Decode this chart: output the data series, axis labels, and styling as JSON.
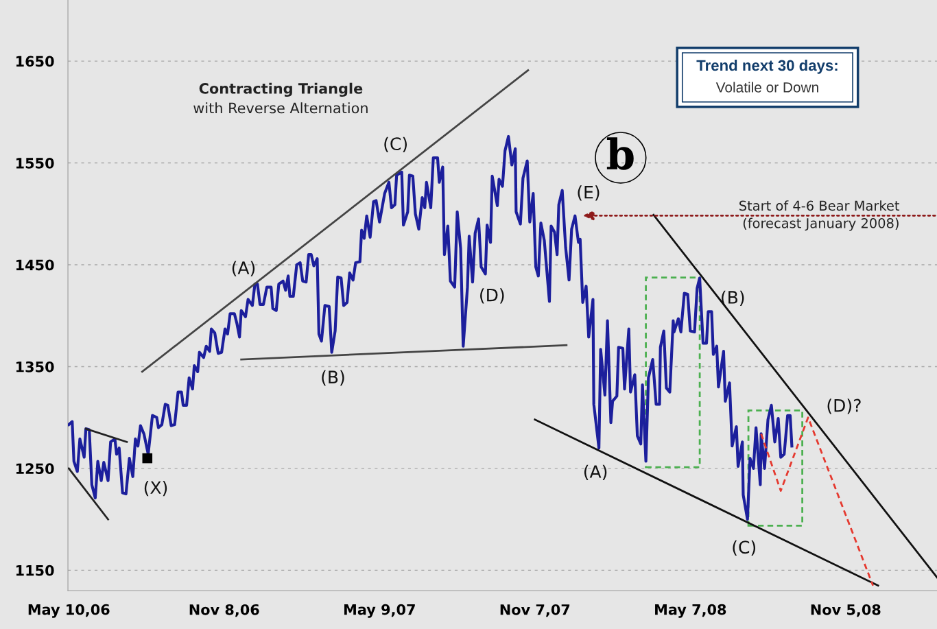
{
  "chart_data": {
    "type": "line",
    "title": "Contracting Triangle",
    "subtitle": "with Reverse Alternation",
    "xlim": [
      "2006-05-09",
      "2009-02-20"
    ],
    "ylim": [
      1130,
      1710
    ],
    "xticks": [
      {
        "value": "2006-05-10",
        "label": "May 10,06"
      },
      {
        "value": "2006-11-08",
        "label": "Nov 8,06"
      },
      {
        "value": "2007-05-09",
        "label": "May 9,07"
      },
      {
        "value": "2007-11-07",
        "label": "Nov 7,07"
      },
      {
        "value": "2008-05-07",
        "label": "May 7,08"
      },
      {
        "value": "2008-11-05",
        "label": "Nov 5,08"
      }
    ],
    "yticks": [
      1150,
      1250,
      1350,
      1450,
      1550,
      1650
    ],
    "grid": "y",
    "series": [
      {
        "type": "line",
        "color": "#1c1f9c",
        "line_style": "solid",
        "x": [
          "2006-05-10",
          "2006-05-14",
          "2006-05-16",
          "2006-05-20",
          "2006-05-23",
          "2006-05-28",
          "2006-05-30",
          "2006-06-03",
          "2006-06-06",
          "2006-06-10",
          "2006-06-13",
          "2006-06-17",
          "2006-06-20",
          "2006-06-25",
          "2006-06-28",
          "2006-07-03",
          "2006-07-05",
          "2006-07-08",
          "2006-07-12",
          "2006-07-16",
          "2006-07-20",
          "2006-07-24",
          "2006-07-27",
          "2006-07-30",
          "2006-08-02",
          "2006-08-06",
          "2006-08-11",
          "2006-08-16",
          "2006-08-21",
          "2006-08-23",
          "2006-08-27",
          "2006-08-31",
          "2006-09-03",
          "2006-09-07",
          "2006-09-11",
          "2006-09-15",
          "2006-09-19",
          "2006-09-21",
          "2006-09-25",
          "2006-09-28",
          "2006-10-02",
          "2006-10-04",
          "2006-10-08",
          "2006-10-10",
          "2006-10-15",
          "2006-10-18",
          "2006-10-22",
          "2006-10-24",
          "2006-10-28",
          "2006-11-01",
          "2006-11-05",
          "2006-11-09",
          "2006-11-12",
          "2006-11-15",
          "2006-11-20",
          "2006-11-23",
          "2006-11-26",
          "2006-11-28",
          "2006-12-03",
          "2006-12-06",
          "2006-12-11",
          "2006-12-14",
          "2006-12-17",
          "2006-12-20",
          "2006-12-24",
          "2006-12-28",
          "2007-01-02",
          "2007-01-04",
          "2007-01-08",
          "2007-01-11",
          "2007-01-16",
          "2007-01-19",
          "2007-01-22",
          "2007-01-24",
          "2007-01-28",
          "2007-02-01",
          "2007-02-05",
          "2007-02-08",
          "2007-02-12",
          "2007-02-15",
          "2007-02-18",
          "2007-02-21",
          "2007-02-25",
          "2007-02-27",
          "2007-03-02",
          "2007-03-06",
          "2007-03-11",
          "2007-03-14",
          "2007-03-18",
          "2007-03-21",
          "2007-03-25",
          "2007-03-28",
          "2007-04-01",
          "2007-04-04",
          "2007-04-08",
          "2007-04-11",
          "2007-04-16",
          "2007-04-18",
          "2007-04-21",
          "2007-04-24",
          "2007-04-28",
          "2007-05-02",
          "2007-05-05",
          "2007-05-09",
          "2007-05-15",
          "2007-05-20",
          "2007-05-23",
          "2007-05-27",
          "2007-05-29",
          "2007-06-04",
          "2007-06-06",
          "2007-06-11",
          "2007-06-13",
          "2007-06-17",
          "2007-06-20",
          "2007-06-24",
          "2007-06-28",
          "2007-07-01",
          "2007-07-03",
          "2007-07-08",
          "2007-07-11",
          "2007-07-16",
          "2007-07-18",
          "2007-07-22",
          "2007-07-24",
          "2007-07-28",
          "2007-07-31",
          "2007-08-05",
          "2007-08-08",
          "2007-08-12",
          "2007-08-15",
          "2007-08-20",
          "2007-08-22",
          "2007-08-26",
          "2007-08-29",
          "2007-09-02",
          "2007-09-05",
          "2007-09-10",
          "2007-09-12",
          "2007-09-16",
          "2007-09-18",
          "2007-09-24",
          "2007-09-26",
          "2007-09-30",
          "2007-10-03",
          "2007-10-07",
          "2007-10-11",
          "2007-10-15",
          "2007-10-16",
          "2007-10-21",
          "2007-10-24",
          "2007-10-29",
          "2007-11-01",
          "2007-11-05",
          "2007-11-08",
          "2007-11-11",
          "2007-11-14",
          "2007-11-18",
          "2007-11-20",
          "2007-11-24",
          "2007-11-26",
          "2007-11-30",
          "2007-12-03",
          "2007-12-05",
          "2007-12-09",
          "2007-12-13",
          "2007-12-17",
          "2007-12-20",
          "2007-12-24",
          "2007-12-28",
          "2007-12-30",
          "2008-01-02",
          "2008-01-06",
          "2008-01-09",
          "2008-01-14",
          "2008-01-15",
          "2008-01-21",
          "2008-01-23",
          "2008-01-28",
          "2008-01-31",
          "2008-02-04",
          "2008-02-06",
          "2008-02-11",
          "2008-02-13",
          "2008-02-18",
          "2008-02-20",
          "2008-02-25",
          "2008-02-27",
          "2008-03-03",
          "2008-03-06",
          "2008-03-10",
          "2008-03-12",
          "2008-03-16",
          "2008-03-19",
          "2008-03-24",
          "2008-03-28",
          "2008-04-01",
          "2008-04-02",
          "2008-04-06",
          "2008-04-09",
          "2008-04-13",
          "2008-04-17",
          "2008-04-18",
          "2008-04-23",
          "2008-04-26",
          "2008-04-30",
          "2008-05-04",
          "2008-05-07",
          "2008-05-12",
          "2008-05-15",
          "2008-05-18",
          "2008-05-22",
          "2008-05-26",
          "2008-05-28",
          "2008-06-01",
          "2008-06-03",
          "2008-06-07",
          "2008-06-09",
          "2008-06-15",
          "2008-06-17",
          "2008-06-22",
          "2008-06-25",
          "2008-06-30",
          "2008-07-02",
          "2008-07-07",
          "2008-07-08",
          "2008-07-13",
          "2008-07-16",
          "2008-07-20",
          "2008-07-23",
          "2008-07-28",
          "2008-07-29",
          "2008-08-02",
          "2008-08-06",
          "2008-08-10",
          "2008-08-14",
          "2008-08-18",
          "2008-08-21",
          "2008-08-25",
          "2008-08-29",
          "2008-09-01",
          "2008-09-03"
        ],
        "values": [
          1293,
          1296,
          1257,
          1247,
          1279,
          1261,
          1289,
          1288,
          1234,
          1221,
          1257,
          1238,
          1256,
          1238,
          1276,
          1279,
          1264,
          1270,
          1226,
          1225,
          1260,
          1242,
          1279,
          1272,
          1292,
          1284,
          1264,
          1302,
          1300,
          1290,
          1293,
          1313,
          1312,
          1292,
          1293,
          1325,
          1325,
          1312,
          1312,
          1339,
          1328,
          1351,
          1345,
          1364,
          1359,
          1370,
          1365,
          1387,
          1383,
          1363,
          1364,
          1387,
          1382,
          1402,
          1402,
          1392,
          1379,
          1405,
          1399,
          1416,
          1410,
          1431,
          1431,
          1411,
          1411,
          1428,
          1428,
          1407,
          1405,
          1431,
          1434,
          1425,
          1439,
          1419,
          1419,
          1450,
          1452,
          1434,
          1433,
          1460,
          1460,
          1449,
          1456,
          1382,
          1375,
          1410,
          1409,
          1364,
          1385,
          1438,
          1437,
          1410,
          1413,
          1442,
          1435,
          1452,
          1453,
          1484,
          1476,
          1498,
          1477,
          1512,
          1513,
          1492,
          1520,
          1531,
          1506,
          1509,
          1538,
          1541,
          1489,
          1502,
          1538,
          1537,
          1500,
          1485,
          1516,
          1506,
          1531,
          1506,
          1555,
          1555,
          1531,
          1546,
          1460,
          1488,
          1434,
          1428,
          1502,
          1466,
          1370,
          1428,
          1478,
          1433,
          1481,
          1495,
          1448,
          1441,
          1489,
          1472,
          1537,
          1508,
          1534,
          1527,
          1562,
          1576,
          1548,
          1564,
          1502,
          1490,
          1535,
          1552,
          1492,
          1520,
          1448,
          1439,
          1491,
          1474,
          1454,
          1414,
          1488,
          1482,
          1460,
          1509,
          1523,
          1467,
          1435,
          1485,
          1498,
          1472,
          1475,
          1413,
          1429,
          1379,
          1416,
          1313,
          1270,
          1367,
          1322,
          1395,
          1295,
          1316,
          1321,
          1369,
          1368,
          1328,
          1387,
          1325,
          1342,
          1282,
          1274,
          1332,
          1257,
          1339,
          1357,
          1313,
          1313,
          1369,
          1385,
          1329,
          1325,
          1395,
          1384,
          1397,
          1384,
          1422,
          1421,
          1385,
          1384,
          1427,
          1437,
          1373,
          1373,
          1404,
          1404,
          1362,
          1370,
          1330,
          1365,
          1316,
          1334,
          1272,
          1291,
          1252,
          1276,
          1224,
          1200,
          1260,
          1250,
          1290,
          1234,
          1284,
          1250,
          1298,
          1312,
          1276,
          1299,
          1261,
          1264,
          1302,
          1302,
          1272
        ]
      },
      {
        "color": "#444444",
        "line_style": "solid",
        "x": [
          "2006-08-04",
          "2007-10-30"
        ],
        "values": [
          1345,
          1641
        ]
      },
      {
        "type": "line",
        "color": "#444444",
        "line_style": "solid",
        "x": [
          "2006-11-28",
          "2007-12-14"
        ],
        "values": [
          1357,
          1371
        ]
      },
      {
        "type": "line",
        "color": "#222222",
        "line_style": "solid",
        "x": [
          "2006-05-30",
          "2006-07-17"
        ],
        "values": [
          1289,
          1276
        ]
      },
      {
        "type": "line",
        "color": "#222222",
        "line_style": "solid",
        "x": [
          "2006-05-10",
          "2006-06-25"
        ],
        "values": [
          1250,
          1200
        ]
      },
      {
        "type": "line",
        "color": "#111111",
        "line_style": "solid",
        "x": [
          "2008-03-25",
          "2009-02-20"
        ],
        "values": [
          1499,
          1143
        ]
      },
      {
        "type": "line",
        "color": "#111111",
        "line_style": "solid",
        "x": [
          "2007-11-07",
          "2008-12-13"
        ],
        "values": [
          1298,
          1135
        ]
      },
      {
        "type": "line",
        "color": "#e5392f",
        "line_style": "dashed",
        "x": [
          "2008-07-29",
          "2008-08-21",
          "2008-09-22",
          "2008-12-07"
        ],
        "values": [
          1284,
          1228,
          1300,
          1135
        ]
      },
      {
        "type": "scatter",
        "color": "#000000",
        "marker": "square",
        "x": [
          "2006-08-10"
        ],
        "values": [
          1260
        ]
      }
    ],
    "annotations": [
      "Trend next 30 days:",
      "Volatile or Down",
      "Start of 4-6 Bear Market\n(forecast January 2008)",
      "b",
      "(A)",
      "(B)",
      "(C)",
      "(D)",
      "(E)",
      "(X)",
      "(A)",
      "(B)",
      "(C)",
      "(D)?"
    ]
  }
}
